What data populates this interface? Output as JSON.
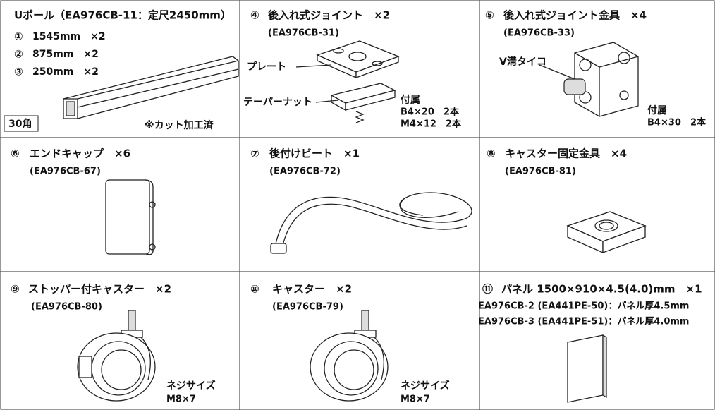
{
  "cells": [
    {
      "title": "Uポール（EA976CB-11：定尺2450mm）",
      "items": [
        {
          "number": "①",
          "text": "1545mm　×2"
        },
        {
          "number": "②",
          "text": "875mm　×2"
        },
        {
          "number": "③",
          "text": "250mm　×2"
        }
      ],
      "badge": "30角",
      "note": "※カット加工済"
    },
    {
      "number": "④",
      "title": "後入れ式ジョイント　×2",
      "code": "(EA976CB-31)",
      "labels": [
        "プレート",
        "テーパーナット"
      ],
      "accessory": {
        "heading": "付属",
        "lines": [
          "B4×20　2本",
          "M4×12　2本"
        ]
      }
    },
    {
      "number": "⑤",
      "title": "後入れ式ジョイント金具　×4",
      "code": "(EA976CB-33)",
      "labels": [
        "V溝タイコ"
      ],
      "accessory": {
        "heading": "付属",
        "lines": [
          "B4×30　2本"
        ]
      }
    },
    {
      "number": "⑥",
      "title": "エンドキャップ　×6",
      "code": "(EA976CB-67)"
    },
    {
      "number": "⑦",
      "title": "後付けビート　×1",
      "code": "(EA976CB-72)"
    },
    {
      "number": "⑧",
      "title": "キャスター固定金具　×4",
      "code": "(EA976CB-81)"
    },
    {
      "number": "⑨",
      "title": "ストッパー付キャスター　×2",
      "code": "(EA976CB-80)",
      "screw": {
        "heading": "ネジサイズ",
        "size": "M8×7"
      }
    },
    {
      "number": "⑩",
      "title": "キャスター　×2",
      "code": "(EA976CB-79)",
      "screw": {
        "heading": "ネジサイズ",
        "size": "M8×7"
      }
    },
    {
      "number": "⑪",
      "title": "パネル 1500×910×4.5(4.0)mm　×1",
      "lines": [
        "EA976CB-2 (EA441PE-50)：パネル厚4.5mm",
        "EA976CB-3 (EA441PE-51)：パネル厚4.0mm"
      ]
    }
  ]
}
